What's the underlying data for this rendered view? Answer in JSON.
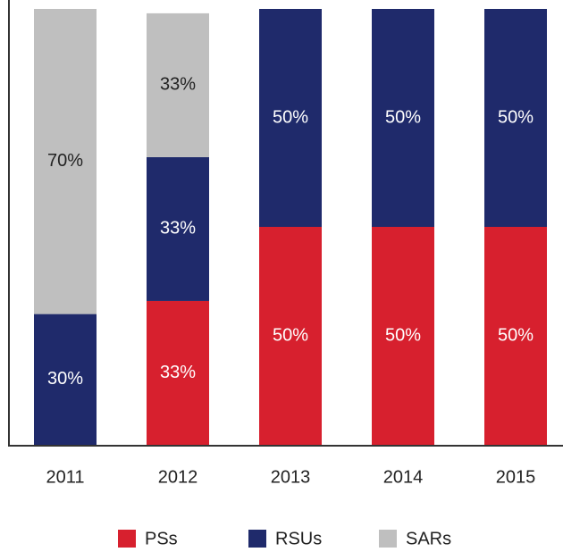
{
  "chart_data": {
    "type": "stacked_bar",
    "categories": [
      "2011",
      "2012",
      "2013",
      "2014",
      "2015"
    ],
    "series": [
      {
        "name": "PSs",
        "color": "#d7202e",
        "values": [
          null,
          33,
          50,
          50,
          50
        ],
        "value_labels": [
          null,
          "33%",
          "50%",
          "50%",
          "50%"
        ]
      },
      {
        "name": "RSUs",
        "color": "#1f2a6b",
        "values": [
          30,
          33,
          50,
          50,
          50
        ],
        "value_labels": [
          "30%",
          "33%",
          "50%",
          "50%",
          "50%"
        ]
      },
      {
        "name": "SARs",
        "color": "#bfbfbf",
        "values": [
          70,
          33,
          null,
          null,
          null
        ],
        "value_labels": [
          "70%",
          "33%",
          null,
          null,
          null
        ]
      }
    ],
    "ylim": [
      0,
      100
    ],
    "legend": "bottom"
  }
}
